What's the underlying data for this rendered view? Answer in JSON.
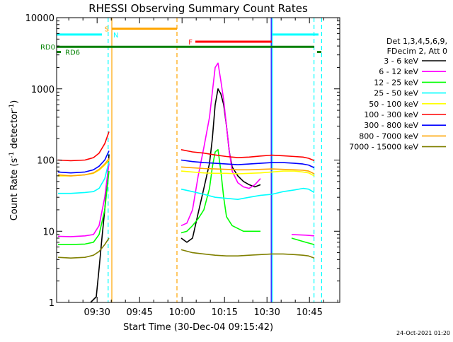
{
  "chart_data": {
    "type": "line",
    "title": "RHESSI Observing Summary Count Rates",
    "xlabel": "Start Time (30-Dec-04 09:15:42)",
    "ylabel_parts": [
      "Count Rate (s",
      "-1",
      " detector",
      "-1",
      ")"
    ],
    "ylabel": "Count Rate (s-1 detector-1)",
    "x_axis": {
      "start_min": 0,
      "end_min": 100,
      "ticks": [
        {
          "t": 14.3,
          "label": "09:30"
        },
        {
          "t": 29.3,
          "label": "09:45"
        },
        {
          "t": 44.3,
          "label": "10:00"
        },
        {
          "t": 59.3,
          "label": "10:15"
        },
        {
          "t": 74.3,
          "label": "10:30"
        },
        {
          "t": 89.3,
          "label": "10:45"
        }
      ]
    },
    "y_axis": {
      "scale": "log",
      "ylim": [
        1,
        10000
      ],
      "ticks": [
        {
          "v": 1,
          "label": "1"
        },
        {
          "v": 10,
          "label": "10"
        },
        {
          "v": 100,
          "label": "100"
        },
        {
          "v": 1000,
          "label": "1000"
        },
        {
          "v": 10000,
          "label": "10000"
        }
      ]
    },
    "legend_header": [
      "Det 1,3,4,5,6,9,",
      "FDecim 2, Att 0"
    ],
    "legend_position": "right",
    "series": [
      {
        "name": "3 - 6 keV",
        "color": "#000000",
        "segments": [
          [
            [
              12,
              1
            ],
            [
              14,
              1.2
            ],
            [
              15,
              3
            ],
            [
              16,
              8
            ],
            [
              17,
              20
            ],
            [
              18,
              60
            ],
            [
              18.5,
              120
            ]
          ],
          [
            [
              44,
              8
            ],
            [
              46,
              7
            ],
            [
              48,
              8
            ],
            [
              50,
              18
            ],
            [
              52,
              40
            ],
            [
              54,
              90
            ],
            [
              55,
              200
            ],
            [
              56,
              600
            ],
            [
              57,
              1000
            ],
            [
              58,
              850
            ],
            [
              59,
              600
            ],
            [
              60,
              300
            ],
            [
              61,
              130
            ],
            [
              62,
              80
            ],
            [
              64,
              60
            ],
            [
              66,
              50
            ],
            [
              68,
              45
            ],
            [
              70,
              42
            ],
            [
              72,
              45
            ]
          ]
        ]
      },
      {
        "name": "6 - 12 keV",
        "color": "#ff00ff",
        "segments": [
          [
            [
              0.5,
              8.5
            ],
            [
              5,
              8.4
            ],
            [
              10,
              8.6
            ],
            [
              13,
              9
            ],
            [
              15,
              12
            ],
            [
              17,
              30
            ],
            [
              18.5,
              90
            ]
          ],
          [
            [
              44,
              12
            ],
            [
              46,
              13
            ],
            [
              48,
              20
            ],
            [
              50,
              60
            ],
            [
              52,
              150
            ],
            [
              54,
              400
            ],
            [
              55,
              900
            ],
            [
              56,
              2000
            ],
            [
              57,
              2300
            ],
            [
              58,
              1300
            ],
            [
              59,
              700
            ],
            [
              60,
              300
            ],
            [
              61,
              130
            ],
            [
              62,
              70
            ],
            [
              64,
              48
            ],
            [
              66,
              42
            ],
            [
              68,
              40
            ],
            [
              70,
              45
            ],
            [
              72,
              55
            ]
          ],
          [
            [
              83,
              9
            ],
            [
              88,
              8.8
            ],
            [
              91,
              8.6
            ]
          ]
        ]
      },
      {
        "name": "12 - 25 keV",
        "color": "#00ff00",
        "segments": [
          [
            [
              0.5,
              6.5
            ],
            [
              5,
              6.5
            ],
            [
              10,
              6.6
            ],
            [
              13,
              7
            ],
            [
              15,
              9
            ],
            [
              17,
              20
            ],
            [
              18.5,
              70
            ]
          ],
          [
            [
              44,
              9.5
            ],
            [
              46,
              10
            ],
            [
              48,
              12
            ],
            [
              50,
              15
            ],
            [
              52,
              20
            ],
            [
              54,
              40
            ],
            [
              55,
              80
            ],
            [
              56,
              130
            ],
            [
              57,
              140
            ],
            [
              58,
              70
            ],
            [
              59,
              30
            ],
            [
              60,
              16
            ],
            [
              62,
              12
            ],
            [
              66,
              10
            ],
            [
              72,
              10
            ]
          ],
          [
            [
              83,
              8
            ],
            [
              88,
              7
            ],
            [
              91,
              6.5
            ]
          ]
        ]
      },
      {
        "name": "25 - 50 keV",
        "color": "#00ffff",
        "segments": [
          [
            [
              0.5,
              34
            ],
            [
              5,
              34
            ],
            [
              10,
              35
            ],
            [
              13,
              36
            ],
            [
              15,
              40
            ],
            [
              17,
              55
            ],
            [
              18.5,
              95
            ]
          ],
          [
            [
              44,
              39
            ],
            [
              48,
              36
            ],
            [
              52,
              33
            ],
            [
              56,
              30
            ],
            [
              60,
              29
            ],
            [
              64,
              28
            ],
            [
              68,
              30
            ],
            [
              72,
              32
            ],
            [
              76,
              33
            ],
            [
              80,
              36
            ],
            [
              84,
              38
            ],
            [
              87,
              40
            ],
            [
              89,
              39
            ],
            [
              91,
              35
            ]
          ]
        ]
      },
      {
        "name": "50 - 100 keV",
        "color": "#ffff00",
        "segments": [
          [
            [
              0.5,
              60
            ],
            [
              5,
              60
            ],
            [
              10,
              62
            ],
            [
              13,
              65
            ],
            [
              15,
              72
            ],
            [
              17,
              85
            ],
            [
              18.5,
              100
            ]
          ],
          [
            [
              44,
              70
            ],
            [
              48,
              68
            ],
            [
              52,
              66
            ],
            [
              56,
              65
            ],
            [
              60,
              65
            ],
            [
              64,
              64
            ],
            [
              68,
              65
            ],
            [
              72,
              66
            ],
            [
              76,
              68
            ],
            [
              80,
              70
            ],
            [
              84,
              70
            ],
            [
              87,
              68
            ],
            [
              89,
              66
            ],
            [
              91,
              60
            ]
          ]
        ]
      },
      {
        "name": "100 - 300 keV",
        "color": "#ff0000",
        "segments": [
          [
            [
              0.5,
              100
            ],
            [
              5,
              98
            ],
            [
              10,
              100
            ],
            [
              13,
              108
            ],
            [
              15,
              125
            ],
            [
              17,
              170
            ],
            [
              18.5,
              250
            ]
          ],
          [
            [
              44,
              140
            ],
            [
              48,
              130
            ],
            [
              52,
              125
            ],
            [
              56,
              118
            ],
            [
              60,
              112
            ],
            [
              64,
              108
            ],
            [
              68,
              110
            ],
            [
              72,
              114
            ],
            [
              76,
              117
            ],
            [
              80,
              115
            ],
            [
              84,
              112
            ],
            [
              87,
              110
            ],
            [
              89,
              106
            ],
            [
              91,
              98
            ]
          ]
        ]
      },
      {
        "name": "300 - 800 keV",
        "color": "#0000ff",
        "segments": [
          [
            [
              0.5,
              68
            ],
            [
              5,
              66
            ],
            [
              10,
              68
            ],
            [
              13,
              73
            ],
            [
              15,
              82
            ],
            [
              17,
              100
            ],
            [
              18.5,
              135
            ]
          ],
          [
            [
              44,
              100
            ],
            [
              48,
              95
            ],
            [
              52,
              92
            ],
            [
              56,
              90
            ],
            [
              60,
              88
            ],
            [
              64,
              86
            ],
            [
              68,
              88
            ],
            [
              72,
              90
            ],
            [
              76,
              92
            ],
            [
              80,
              92
            ],
            [
              84,
              90
            ],
            [
              87,
              88
            ],
            [
              89,
              85
            ],
            [
              91,
              78
            ]
          ]
        ]
      },
      {
        "name": "800 - 7000 keV",
        "color": "#ffa500",
        "segments": [
          [
            [
              0.5,
              62
            ],
            [
              5,
              60
            ],
            [
              10,
              62
            ],
            [
              13,
              66
            ],
            [
              15,
              74
            ],
            [
              17,
              88
            ],
            [
              18.5,
              105
            ]
          ],
          [
            [
              44,
              80
            ],
            [
              48,
              78
            ],
            [
              52,
              76
            ],
            [
              56,
              75
            ],
            [
              60,
              74
            ],
            [
              64,
              73
            ],
            [
              68,
              73
            ],
            [
              72,
              74
            ],
            [
              76,
              75
            ],
            [
              80,
              74
            ],
            [
              84,
              73
            ],
            [
              87,
              72
            ],
            [
              89,
              70
            ],
            [
              91,
              64
            ]
          ]
        ]
      },
      {
        "name": "7000 - 15000 keV",
        "color": "#808000",
        "segments": [
          [
            [
              0.5,
              4.3
            ],
            [
              5,
              4.2
            ],
            [
              10,
              4.3
            ],
            [
              13,
              4.6
            ],
            [
              15,
              5.2
            ],
            [
              17,
              6.5
            ],
            [
              18.5,
              8
            ]
          ],
          [
            [
              44,
              5.5
            ],
            [
              48,
              5
            ],
            [
              52,
              4.8
            ],
            [
              56,
              4.6
            ],
            [
              60,
              4.5
            ],
            [
              64,
              4.5
            ],
            [
              68,
              4.6
            ],
            [
              72,
              4.7
            ],
            [
              76,
              4.8
            ],
            [
              80,
              4.8
            ],
            [
              84,
              4.7
            ],
            [
              87,
              4.6
            ],
            [
              89,
              4.5
            ],
            [
              91,
              4.2
            ]
          ]
        ]
      }
    ],
    "flag_lines": [
      {
        "label": "",
        "color": "#00ffff",
        "y": 5800,
        "t0": 0,
        "t1": 16
      },
      {
        "label": "",
        "color": "#00ffff",
        "y": 5800,
        "t0": 76,
        "t1": 92.5
      },
      {
        "label": "S",
        "color": "#ffa500",
        "y": 7000,
        "t0": 19.5,
        "t1": 42.5
      },
      {
        "label": "F",
        "color": "#ff0000",
        "y": 4600,
        "t0": 49,
        "t1": 76
      },
      {
        "label": "RD0",
        "color": "#008000",
        "y": 3900,
        "t0": 0,
        "t1": 91
      }
    ],
    "flag_marks": [
      {
        "label": "RD6",
        "color": "#008000",
        "y": 3300,
        "t0": 0,
        "t1": 1.5
      },
      {
        "label": "",
        "color": "#008000",
        "y": 3300,
        "t0": 92,
        "t1": 93.5
      }
    ],
    "n_label": "N",
    "vertical_lines": [
      {
        "t": 18.2,
        "color": "#00ffff",
        "style": "dashed"
      },
      {
        "t": 19.5,
        "color": "#ffa500",
        "style": "solid"
      },
      {
        "t": 42.5,
        "color": "#ffa500",
        "style": "dashed"
      },
      {
        "t": 75.8,
        "color": "#0000ff",
        "style": "solid"
      },
      {
        "t": 76.3,
        "color": "#00ffff",
        "style": "solid"
      },
      {
        "t": 90.9,
        "color": "#00ffff",
        "style": "dashed"
      },
      {
        "t": 93.6,
        "color": "#00ffff",
        "style": "dashed"
      }
    ],
    "timestamp": "24-Oct-2021 01:20"
  }
}
